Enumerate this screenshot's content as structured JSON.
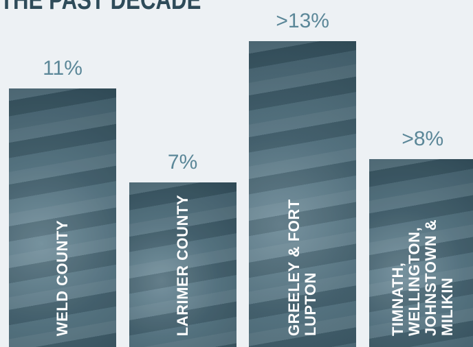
{
  "chart_data": {
    "type": "bar",
    "title": "THE PAST DECADE",
    "categories": [
      "WELD COUNTY",
      "LARIMER COUNTY",
      "GREELEY & FORT LUPTON",
      "TIMNATH, WELLINGTON, JOHNSTOWN & MILIKIN"
    ],
    "values": [
      11,
      7,
      13,
      8
    ],
    "value_labels": [
      "11%",
      "7%",
      ">13%",
      ">8%"
    ],
    "color": "#3f5e6c"
  }
}
